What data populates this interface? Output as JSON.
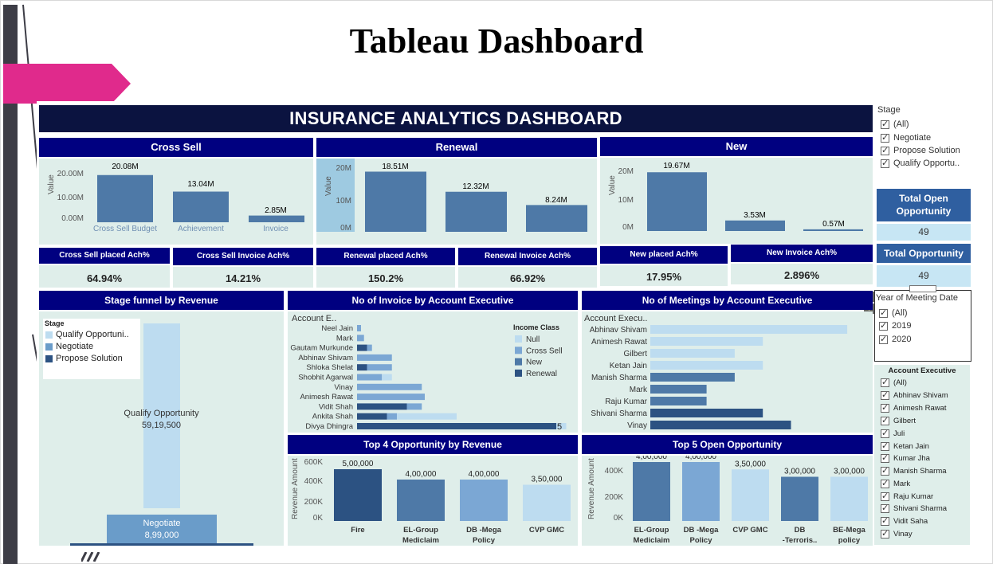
{
  "slide_title": "Tableau Dashboard",
  "dashboard_title": "INSURANCE ANALYTICS DASHBOARD",
  "colors": {
    "header_navy": "#000080",
    "title_navy": "#0b1340",
    "panel_bg": "#dfeeea",
    "bar_mid": "#4e79a7",
    "bar_light": "#bddcf0",
    "bar_dark": "#2c5282",
    "pink": "#e02a8c"
  },
  "cross_sell": {
    "title": "Cross Sell",
    "y_ticks": [
      "20.00M",
      "10.00M",
      "0.00M"
    ],
    "y_label": "Value",
    "values": [
      20.08,
      13.04,
      2.85
    ],
    "labels": [
      "20.08M",
      "13.04M",
      "2.85M"
    ],
    "categories": [
      "Cross Sell Budget",
      "Achievement",
      "Invoice"
    ],
    "placed_title": "Cross Sell placed Ach%",
    "placed_value": "64.94%",
    "invoice_title": "Cross Sell Invoice Ach%",
    "invoice_value": "14.21%"
  },
  "renewal": {
    "title": "Renewal",
    "y_ticks": [
      "20M",
      "10M",
      "0M"
    ],
    "y_label": "Value",
    "values": [
      18.51,
      12.32,
      8.24
    ],
    "labels": [
      "18.51M",
      "12.32M",
      "8.24M"
    ],
    "placed_title": "Renewal placed Ach%",
    "placed_value": "150.2%",
    "invoice_title": "Renewal Invoice Ach%",
    "invoice_value": "66.92%"
  },
  "new": {
    "title": "New",
    "y_ticks": [
      "20M",
      "10M",
      "0M"
    ],
    "y_label": "Value",
    "values": [
      19.67,
      3.53,
      0.57
    ],
    "labels": [
      "19.67M",
      "3.53M",
      "0.57M"
    ],
    "placed_title": "New placed Ach%",
    "placed_value": "17.95%",
    "invoice_title": "New Invoice Ach%",
    "invoice_value": "2.896%"
  },
  "stage_filter": {
    "title": "Stage",
    "items": [
      "(All)",
      "Negotiate",
      "Propose Solution",
      "Qualify Opportu.."
    ]
  },
  "total_open_opportunity": {
    "title": "Total Open Opportunity",
    "value": "49"
  },
  "total_opportunity": {
    "title": "Total Opportunity",
    "value": "49"
  },
  "year_filter": {
    "title": "Year of Meeting Date",
    "items": [
      "(All)",
      "2019",
      "2020"
    ]
  },
  "account_filter": {
    "title": "Account Executive",
    "items": [
      "(All)",
      "Abhinav Shivam",
      "Animesh Rawat",
      "Gilbert",
      "Juli",
      "Ketan Jain",
      "Kumar Jha",
      "Manish Sharma",
      "Mark",
      "Raju Kumar",
      "Shivani Sharma",
      "Vidit Saha",
      "Vinay"
    ]
  },
  "stage_funnel": {
    "title": "Stage funnel by Revenue",
    "legend_title": "Stage",
    "legend": [
      "Qualify Opportuni..",
      "Negotiate",
      "Propose Solution"
    ],
    "legend_colors": [
      "#bddcf0",
      "#6a9cc9",
      "#2c5282"
    ],
    "qualify_label": "Qualify Opportunity",
    "qualify_value": "59,19,500",
    "negotiate_label": "Negotiate",
    "negotiate_value": "8,99,000"
  },
  "chart_data": [
    {
      "type": "bar",
      "title": "Cross Sell",
      "ylabel": "Value",
      "categories": [
        "Cross Sell Budget",
        "Achievement",
        "Invoice"
      ],
      "values": [
        20.08,
        13.04,
        2.85
      ],
      "ylim": [
        0,
        22
      ]
    },
    {
      "type": "bar",
      "title": "Renewal",
      "ylabel": "Value",
      "values": [
        18.51,
        12.32,
        8.24
      ],
      "ylim": [
        0,
        22
      ]
    },
    {
      "type": "bar",
      "title": "New",
      "ylabel": "Value",
      "values": [
        19.67,
        3.53,
        0.57
      ],
      "ylim": [
        0,
        22
      ]
    },
    {
      "type": "bar",
      "title": "No of Invoice by Account Executive",
      "orientation": "horizontal",
      "stacked": true,
      "axis_title": "Account E..",
      "legend_title": "Income Class",
      "legend": [
        "Null",
        "Cross Sell",
        "New",
        "Renewal"
      ],
      "legend_colors": [
        "#bddcf0",
        "#7ba7d4",
        "#4e79a7",
        "#2c5282"
      ],
      "categories": [
        "Neel Jain",
        "Mark",
        "Gautam Murkunde",
        "Abhinav Shivam",
        "Shloka Shelat",
        "Shobhit Agarwal",
        "Vinay",
        "Animesh Rawat",
        "Vidit Shah",
        "Ankita Shah",
        "Divya Dhingra"
      ],
      "series": [
        {
          "name": "Renewal",
          "values": [
            0,
            0,
            1,
            0,
            1,
            0,
            0,
            0,
            5,
            3,
            20
          ]
        },
        {
          "name": "New",
          "values": [
            0,
            0,
            0,
            0,
            0,
            0,
            0,
            0,
            0,
            0,
            0
          ]
        },
        {
          "name": "Cross Sell",
          "values": [
            0.4,
            0.7,
            0.5,
            3.5,
            2.5,
            2.5,
            6.5,
            6.8,
            1.5,
            1.0,
            0
          ]
        },
        {
          "name": "Null",
          "values": [
            0,
            0,
            0,
            0,
            0,
            1,
            0,
            0,
            0,
            6,
            1
          ]
        }
      ],
      "data_labels": [
        "",
        "",
        "",
        "",
        "",
        "",
        "",
        "",
        "",
        "",
        "5"
      ]
    },
    {
      "type": "bar",
      "title": "No of Meetings by Account Executive",
      "orientation": "horizontal",
      "axis_title": "Account Execu..",
      "categories": [
        "Abhinav Shivam",
        "Animesh Rawat",
        "Gilbert",
        "Ketan Jain",
        "Manish Sharma",
        "Mark",
        "Raju Kumar",
        "Shivani Sharma",
        "Vinay"
      ],
      "values": [
        7,
        4,
        3,
        4,
        3,
        2,
        2,
        4,
        5
      ],
      "colors": [
        "#bddcf0",
        "#bddcf0",
        "#bddcf0",
        "#bddcf0",
        "#4e79a7",
        "#4e79a7",
        "#4e79a7",
        "#2c5282",
        "#2c5282"
      ]
    },
    {
      "type": "bar",
      "title": "Top 4 Opportunity by Revenue",
      "ylabel": "Revenue Amount",
      "y_ticks": [
        "600K",
        "400K",
        "200K",
        "0K"
      ],
      "categories": [
        "Fire",
        "EL-Group Mediclaim",
        "DB -Mega Policy",
        "CVP GMC"
      ],
      "values": [
        500000,
        400000,
        400000,
        350000
      ],
      "labels": [
        "5,00,000",
        "4,00,000",
        "4,00,000",
        "3,50,000"
      ],
      "colors": [
        "#2c5282",
        "#4e79a7",
        "#7ba7d4",
        "#bddcf0"
      ],
      "ylim": [
        0,
        600000
      ]
    },
    {
      "type": "bar",
      "title": "Top 5 Open Opportunity",
      "ylabel": "Revenue Amount",
      "y_ticks": [
        "400K",
        "200K",
        "0K"
      ],
      "categories": [
        "EL-Group Mediclaim",
        "DB -Mega Policy",
        "CVP GMC",
        "DB -Terroris..",
        "BE-Mega policy"
      ],
      "values": [
        400000,
        400000,
        350000,
        300000,
        300000
      ],
      "labels": [
        "4,00,000",
        "4,00,000",
        "3,50,000",
        "3,00,000",
        "3,00,000"
      ],
      "colors": [
        "#4e79a7",
        "#7ba7d4",
        "#bddcf0",
        "#4e79a7",
        "#bddcf0"
      ],
      "ylim": [
        0,
        450000
      ]
    }
  ]
}
